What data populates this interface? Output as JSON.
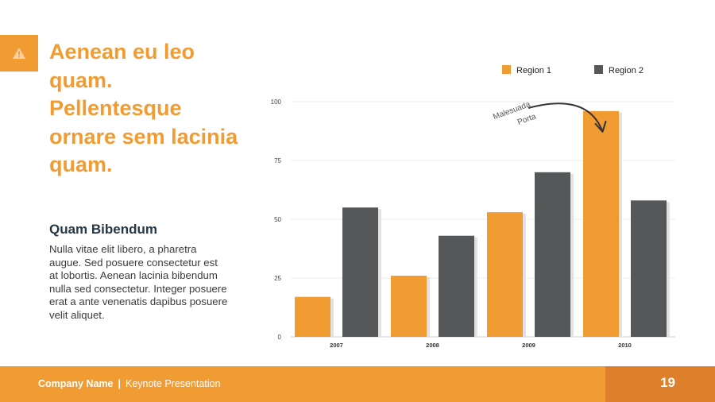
{
  "slide": {
    "headline": "Aenean eu leo quam. Pellentesque ornare sem lacinia quam.",
    "subheading": "Quam Bibendum",
    "body": "Nulla vitae elit libero, a pharetra augue. Sed posuere consectetur est at lobortis. Aenean lacinia bibendum nulla sed consectetur. Integer posuere erat a ante venenatis dapibus posuere velit aliquet.",
    "icon": "warning-icon",
    "accent_color": "#f09c33"
  },
  "footer": {
    "company": "Company Name",
    "separator": "|",
    "presentation": "Keynote Presentation",
    "page_number": "19"
  },
  "chart_data": {
    "type": "bar",
    "categories": [
      "2007",
      "2008",
      "2009",
      "2010"
    ],
    "series": [
      {
        "name": "Region 1",
        "color": "#f09c33",
        "values": [
          17,
          26,
          53,
          96
        ]
      },
      {
        "name": "Region 2",
        "color": "#555759",
        "values": [
          55,
          43,
          70,
          58
        ]
      }
    ],
    "ylim": [
      0,
      100
    ],
    "yticks": [
      0,
      25,
      50,
      75,
      100
    ],
    "grid": true,
    "legend": "top-right",
    "annotation": {
      "text_line1": "Malesuada",
      "text_line2": "Porta",
      "target_series": "Region 1",
      "target_category": "2010"
    }
  }
}
